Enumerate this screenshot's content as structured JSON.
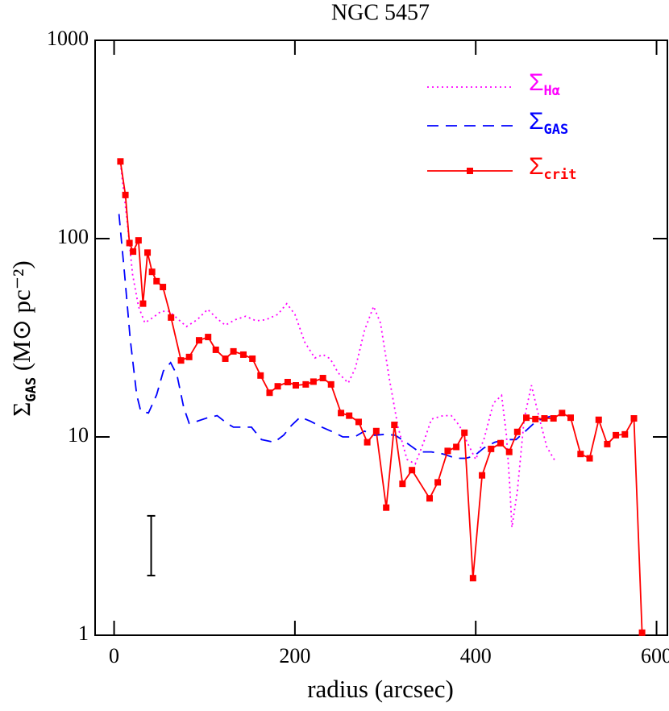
{
  "chart_data": {
    "type": "line",
    "title": "NGC 5457",
    "xlabel": "radius (arcsec)",
    "ylabel": "ΣGAS (M⊙ pc⁻²)",
    "xlim": [
      -21,
      612
    ],
    "xticks": [
      0,
      200,
      400,
      600
    ],
    "ylim": [
      1,
      1000
    ],
    "yticks": [
      1,
      10,
      100,
      1000
    ],
    "log_y": true,
    "legend": "upper right",
    "series": [
      {
        "name": "ΣHα",
        "color": "#ff00ff",
        "style": "dotted",
        "x": [
          7,
          14,
          20.5,
          27,
          34,
          43,
          52,
          61,
          70,
          80,
          92,
          103.5,
          114,
          123,
          134,
          145.5,
          157,
          168,
          181,
          191,
          200,
          211,
          222,
          231,
          239,
          248,
          259,
          267,
          277,
          287,
          294.6,
          304.5,
          314,
          324,
          333,
          342,
          351,
          364,
          373,
          382,
          391,
          400,
          409,
          419.6,
          428.6,
          434,
          437.5,
          440,
          446,
          453.6,
          461.6,
          469.6,
          478.6,
          487.5
        ],
        "values": [
          240,
          127,
          66,
          45.5,
          37.6,
          40,
          43,
          43,
          39.5,
          36,
          39,
          44,
          39.5,
          36.6,
          39,
          40.6,
          38.5,
          39,
          41.5,
          47,
          41.5,
          30,
          25,
          26,
          24.8,
          21,
          18.7,
          22.3,
          34.4,
          45.5,
          37.6,
          19.6,
          11.2,
          7.7,
          7.3,
          9.3,
          12.3,
          12.8,
          12.8,
          11.4,
          9.3,
          7.7,
          9.7,
          14.8,
          16.2,
          10.2,
          5.8,
          3.5,
          5.3,
          12.3,
          18.2,
          12.8,
          8.9,
          7.6
        ]
      },
      {
        "name": "ΣGAS",
        "color": "#0000ff",
        "style": "dashed",
        "x": [
          5.4,
          11.6,
          17.9,
          25,
          29.5,
          38,
          47,
          54.5,
          62.5,
          69.6,
          77,
          83,
          92,
          103.5,
          114,
          125,
          132,
          141,
          152,
          163,
          177,
          187.5,
          196,
          206,
          217,
          230,
          244,
          253,
          266,
          277,
          288,
          300,
          311,
          324,
          337.5,
          351,
          364,
          378,
          389,
          398,
          409,
          421,
          433,
          444.6,
          455,
          467,
          477,
          486
        ],
        "values": [
          133,
          66,
          31,
          16.3,
          13.5,
          13.2,
          16.3,
          21.5,
          23.7,
          20.5,
          14.1,
          11.7,
          12,
          12.5,
          12.8,
          11.7,
          11.2,
          11.2,
          11.2,
          9.7,
          9.4,
          10.2,
          11.4,
          12.6,
          12,
          11.2,
          10.5,
          10,
          10,
          10.7,
          10.2,
          10.3,
          10.2,
          9.3,
          8.4,
          8.4,
          8.2,
          7.8,
          7.8,
          8,
          8.8,
          9.4,
          9.7,
          9.7,
          10.7,
          12,
          12.5,
          12.8
        ]
      },
      {
        "name": "Σcrit",
        "color": "#ff0000",
        "style": "solid",
        "marker": "square",
        "x": [
          7,
          12.5,
          17,
          21,
          27,
          32,
          37,
          42,
          47,
          54,
          63,
          74,
          83,
          94,
          104,
          112.5,
          123,
          132,
          143,
          153,
          162,
          172,
          181,
          192,
          201,
          212,
          220.5,
          231,
          240,
          251,
          260,
          270.5,
          280,
          290,
          301,
          310,
          319,
          329.5,
          349,
          358,
          369,
          378.5,
          387.5,
          397,
          407,
          417,
          427.5,
          437,
          446,
          456,
          466,
          476,
          486,
          495.5,
          505,
          516,
          526,
          536,
          545.5,
          555,
          565,
          575,
          584
        ],
        "values": [
          245,
          166,
          95,
          86,
          98,
          47,
          85,
          68,
          61,
          57,
          40,
          24.3,
          25.3,
          30.7,
          31.9,
          27.5,
          24.8,
          27,
          26,
          24.8,
          20.4,
          16.7,
          18,
          18.9,
          18.2,
          18.4,
          19,
          19.8,
          18.4,
          13.2,
          12.8,
          11.9,
          9.4,
          10.7,
          4.4,
          11.5,
          5.8,
          6.8,
          4.9,
          5.9,
          8.5,
          8.9,
          10.5,
          1.94,
          6.4,
          8.7,
          9.3,
          8.4,
          10.6,
          12.5,
          12.3,
          12.4,
          12.4,
          13.2,
          12.5,
          8.2,
          7.8,
          12.2,
          9.2,
          10.2,
          10.3,
          12.4,
          1.03
        ]
      }
    ],
    "error_bar": {
      "x": 41,
      "low": 2,
      "high": 4
    }
  }
}
